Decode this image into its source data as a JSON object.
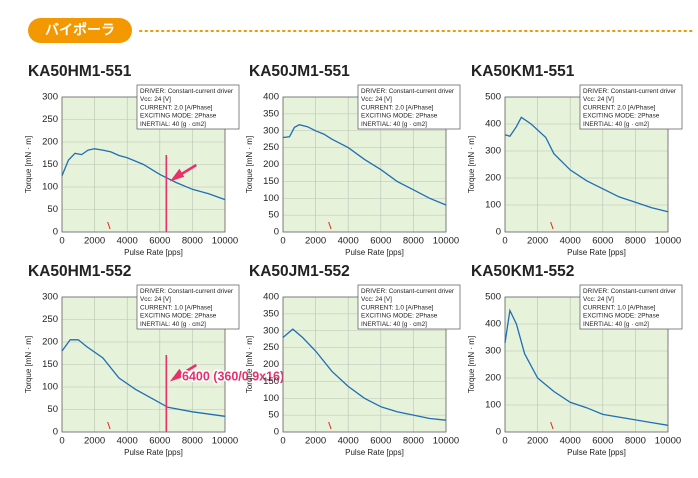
{
  "header": {
    "badge": "バイポーラ"
  },
  "chart_data": [
    {
      "type": "line",
      "title": "KA50HM1-551",
      "x_label": "Pulse Rate [pps]",
      "y_label": "Torque [mN · m]",
      "info": [
        "DRIVER: Constant-current driver",
        "Vcc: 24 [V]",
        "CURRENT: 2.0 [A/Phase]",
        "EXCITING MODE: 2Phase",
        "INERTIAL: 40 [g · cm2]"
      ],
      "x": [
        0,
        400,
        800,
        1200,
        1600,
        2000,
        2500,
        3000,
        3500,
        4000,
        5000,
        6000,
        7000,
        8000,
        9000,
        10000
      ],
      "values": [
        125,
        160,
        175,
        172,
        182,
        185,
        182,
        178,
        170,
        165,
        150,
        128,
        110,
        95,
        85,
        72
      ],
      "color": "#1f6fb5",
      "xlim": [
        0,
        10000
      ],
      "xticks": [
        0,
        2000,
        4000,
        6000,
        8000,
        10000
      ],
      "ylim": [
        0,
        300
      ],
      "yticks": [
        0,
        50,
        100,
        150,
        200,
        250,
        300
      ],
      "grid": true,
      "vline": 6400
    },
    {
      "type": "line",
      "title": "KA50JM1-551",
      "x_label": "Pulse Rate [pps]",
      "y_label": "Torque [mN · m]",
      "info": [
        "DRIVER: Constant-current driver",
        "Vcc: 24 [V]",
        "CURRENT: 2.0 [A/Phase]",
        "EXCITING MODE: 2Phase",
        "INERTIAL: 40 [g · cm2]"
      ],
      "x": [
        0,
        400,
        700,
        1000,
        1500,
        2000,
        2500,
        3000,
        4000,
        5000,
        6000,
        7000,
        8000,
        9000,
        10000
      ],
      "values": [
        280,
        282,
        310,
        318,
        312,
        300,
        290,
        275,
        250,
        215,
        185,
        150,
        125,
        100,
        80
      ],
      "color": "#1f6fb5",
      "xlim": [
        0,
        10000
      ],
      "xticks": [
        0,
        2000,
        4000,
        6000,
        8000,
        10000
      ],
      "ylim": [
        0,
        400
      ],
      "yticks": [
        0,
        50,
        100,
        150,
        200,
        250,
        300,
        350,
        400
      ],
      "grid": true
    },
    {
      "type": "line",
      "title": "KA50KM1-551",
      "x_label": "Pulse Rate [pps]",
      "y_label": "Torque [mN · m]",
      "info": [
        "DRIVER: Constant-current driver",
        "Vcc: 24 [V]",
        "CURRENT: 2.0 [A/Phase]",
        "EXCITING MODE: 2Phase",
        "INERTIAL: 40 [g · cm2]"
      ],
      "x": [
        0,
        300,
        700,
        1000,
        1600,
        2500,
        3000,
        4000,
        5000,
        6000,
        7000,
        8000,
        9000,
        10000
      ],
      "values": [
        360,
        355,
        390,
        425,
        400,
        350,
        290,
        230,
        190,
        160,
        130,
        110,
        90,
        75
      ],
      "color": "#1f6fb5",
      "xlim": [
        0,
        10000
      ],
      "xticks": [
        0,
        2000,
        4000,
        6000,
        8000,
        10000
      ],
      "ylim": [
        0,
        500
      ],
      "yticks": [
        0,
        100,
        200,
        300,
        400,
        500
      ],
      "grid": true
    },
    {
      "type": "line",
      "title": "KA50HM1-552",
      "x_label": "Pulse Rate [pps]",
      "y_label": "Torque [mN · m]",
      "info": [
        "DRIVER: Constant-current driver",
        "Vcc: 24 [V]",
        "CURRENT: 1.0 [A/Phase]",
        "EXCITING MODE: 2Phase",
        "INERTIAL: 40 [g · cm2]"
      ],
      "x": [
        0,
        500,
        1000,
        1500,
        2500,
        3500,
        4500,
        5500,
        6500,
        8000,
        10000
      ],
      "values": [
        180,
        205,
        205,
        190,
        165,
        120,
        95,
        75,
        55,
        45,
        35
      ],
      "color": "#1f6fb5",
      "xlim": [
        0,
        10000
      ],
      "xticks": [
        0,
        2000,
        4000,
        6000,
        8000,
        10000
      ],
      "ylim": [
        0,
        300
      ],
      "yticks": [
        0,
        50,
        100,
        150,
        200,
        250,
        300
      ],
      "grid": true,
      "vline": 6400,
      "annotation": "6400 (360/0.9x16)"
    },
    {
      "type": "line",
      "title": "KA50JM1-552",
      "x_label": "Pulse Rate [pps]",
      "y_label": "Torque [mN · m]",
      "info": [
        "DRIVER: Constant-current driver",
        "Vcc: 24 [V]",
        "CURRENT: 1.0 [A/Phase]",
        "EXCITING MODE: 2Phase",
        "INERTIAL: 40 [g · cm2]"
      ],
      "x": [
        0,
        600,
        1200,
        2000,
        3000,
        4000,
        5000,
        6000,
        7000,
        8000,
        9000,
        10000
      ],
      "values": [
        280,
        305,
        280,
        240,
        180,
        135,
        100,
        75,
        60,
        50,
        40,
        35
      ],
      "color": "#1f6fb5",
      "xlim": [
        0,
        10000
      ],
      "xticks": [
        0,
        2000,
        4000,
        6000,
        8000,
        10000
      ],
      "ylim": [
        0,
        400
      ],
      "yticks": [
        0,
        50,
        100,
        150,
        200,
        250,
        300,
        350,
        400
      ],
      "grid": true
    },
    {
      "type": "line",
      "title": "KA50KM1-552",
      "x_label": "Pulse Rate [pps]",
      "y_label": "Torque [mN · m]",
      "info": [
        "DRIVER: Constant-current driver",
        "Vcc: 24 [V]",
        "CURRENT: 1.0 [A/Phase]",
        "EXCITING MODE: 2Phase",
        "INERTIAL: 40 [g · cm2]"
      ],
      "x": [
        0,
        300,
        700,
        1200,
        2000,
        3000,
        4000,
        5000,
        6000,
        7000,
        8000,
        9000,
        10000
      ],
      "values": [
        330,
        450,
        400,
        290,
        200,
        150,
        110,
        90,
        65,
        55,
        45,
        35,
        25
      ],
      "color": "#1f6fb5",
      "xlim": [
        0,
        10000
      ],
      "xticks": [
        0,
        2000,
        4000,
        6000,
        8000,
        10000
      ],
      "ylim": [
        0,
        500
      ],
      "yticks": [
        0,
        100,
        200,
        300,
        400,
        500
      ],
      "grid": true
    }
  ]
}
